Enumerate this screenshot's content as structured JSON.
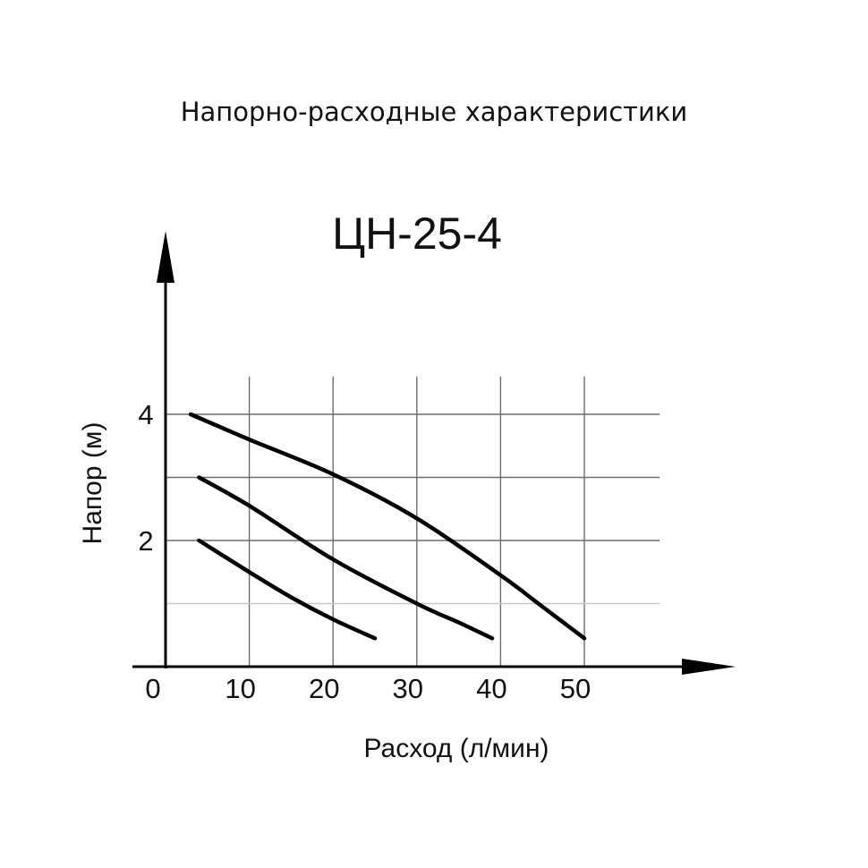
{
  "header": {
    "caption": "Напорно-расходные характеристики"
  },
  "chart_data": {
    "type": "line",
    "title": "ЦН-25-4",
    "xlabel": "Расход (л/мин)",
    "ylabel": "Напор (м)",
    "xlim": [
      0,
      60
    ],
    "ylim": [
      0,
      5.7
    ],
    "x_ticks": [
      {
        "value": 0,
        "label": "0"
      },
      {
        "value": 10,
        "label": "10"
      },
      {
        "value": 20,
        "label": "20"
      },
      {
        "value": 30,
        "label": "30"
      },
      {
        "value": 40,
        "label": "40"
      },
      {
        "value": 50,
        "label": "50"
      }
    ],
    "y_ticks": [
      {
        "value": 2,
        "label": "2"
      },
      {
        "value": 4,
        "label": "4"
      }
    ],
    "grid": true,
    "x_grid": [
      10,
      20,
      30,
      40,
      50
    ],
    "y_grid": [
      1,
      2,
      3,
      4
    ],
    "y_grid_extent": 4.6,
    "x_grid_extent": 59,
    "series": [
      {
        "points": [
          [
            4,
            2.0
          ],
          [
            10,
            1.5
          ],
          [
            15,
            1.1
          ],
          [
            20,
            0.75
          ],
          [
            25,
            0.45
          ]
        ]
      },
      {
        "points": [
          [
            4,
            3.0
          ],
          [
            10,
            2.55
          ],
          [
            20,
            1.7
          ],
          [
            30,
            1.0
          ],
          [
            35,
            0.7
          ],
          [
            39,
            0.45
          ]
        ]
      },
      {
        "points": [
          [
            3,
            4.0
          ],
          [
            10,
            3.6
          ],
          [
            20,
            3.05
          ],
          [
            30,
            2.35
          ],
          [
            40,
            1.45
          ],
          [
            45,
            0.95
          ],
          [
            50,
            0.45
          ]
        ]
      }
    ],
    "colors": {
      "curve": "#000000",
      "axis": "#000000",
      "grid": "#6d6d6d",
      "grid_light": "#c8c8c8"
    }
  }
}
